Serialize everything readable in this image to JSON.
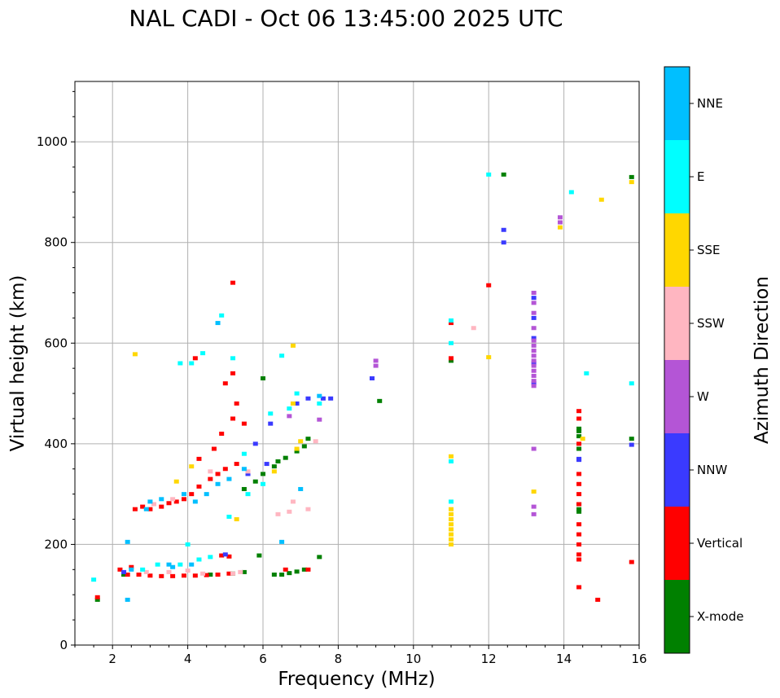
{
  "chart_data": {
    "type": "scatter",
    "title": "NAL CADI - Oct 06 13:45:00 2025 UTC",
    "xlabel": "Frequency (MHz)",
    "ylabel": "Virtual height (km)",
    "xlim": [
      1,
      16
    ],
    "ylim": [
      0,
      1120
    ],
    "xticks": [
      2,
      4,
      6,
      8,
      10,
      12,
      14,
      16
    ],
    "yticks": [
      0,
      200,
      400,
      600,
      800,
      1000
    ],
    "grid": true,
    "colorbar": {
      "title": "Azimuth Direction",
      "categories": [
        "X-mode",
        "Vertical",
        "NNW",
        "W",
        "SSW",
        "SSE",
        "E",
        "NNE"
      ],
      "colors": [
        "#008000",
        "#ff0000",
        "#3a3aff",
        "#b455d6",
        "#ffb6c1",
        "#ffd700",
        "#00ffff",
        "#00bfff"
      ]
    },
    "series": [
      {
        "name": "X-mode",
        "points": [
          [
            1.6,
            90
          ],
          [
            2.3,
            140
          ],
          [
            4.6,
            140
          ],
          [
            5.2,
            142
          ],
          [
            5.5,
            145
          ],
          [
            5.9,
            178
          ],
          [
            6.3,
            140
          ],
          [
            6.5,
            140
          ],
          [
            6.7,
            143
          ],
          [
            6.9,
            146
          ],
          [
            7.1,
            150
          ],
          [
            7.5,
            175
          ],
          [
            5.5,
            310
          ],
          [
            5.8,
            325
          ],
          [
            6.0,
            340
          ],
          [
            6.3,
            355
          ],
          [
            6.4,
            365
          ],
          [
            6.6,
            372
          ],
          [
            6.9,
            385
          ],
          [
            7.1,
            395
          ],
          [
            7.2,
            410
          ],
          [
            6.0,
            530
          ],
          [
            9.1,
            485
          ],
          [
            11.0,
            565
          ],
          [
            12.4,
            935
          ],
          [
            14.4,
            265
          ],
          [
            14.4,
            270
          ],
          [
            14.4,
            280
          ],
          [
            14.4,
            390
          ],
          [
            14.4,
            415
          ],
          [
            14.4,
            425
          ],
          [
            14.4,
            430
          ],
          [
            15.8,
            410
          ],
          [
            15.8,
            930
          ]
        ]
      },
      {
        "name": "Vertical",
        "points": [
          [
            1.6,
            95
          ],
          [
            2.2,
            150
          ],
          [
            2.4,
            140
          ],
          [
            2.5,
            155
          ],
          [
            2.7,
            140
          ],
          [
            3.0,
            138
          ],
          [
            3.3,
            137
          ],
          [
            3.6,
            137
          ],
          [
            3.9,
            138
          ],
          [
            4.2,
            138
          ],
          [
            4.5,
            139
          ],
          [
            4.8,
            140
          ],
          [
            5.1,
            142
          ],
          [
            4.9,
            178
          ],
          [
            5.1,
            176
          ],
          [
            2.6,
            270
          ],
          [
            2.8,
            275
          ],
          [
            3.0,
            270
          ],
          [
            3.3,
            275
          ],
          [
            3.5,
            282
          ],
          [
            3.7,
            285
          ],
          [
            3.9,
            290
          ],
          [
            4.1,
            300
          ],
          [
            4.3,
            315
          ],
          [
            4.6,
            330
          ],
          [
            4.8,
            340
          ],
          [
            5.0,
            350
          ],
          [
            5.3,
            360
          ],
          [
            4.3,
            370
          ],
          [
            4.7,
            390
          ],
          [
            4.9,
            420
          ],
          [
            5.2,
            450
          ],
          [
            5.3,
            480
          ],
          [
            5.5,
            440
          ],
          [
            5.0,
            520
          ],
          [
            5.2,
            540
          ],
          [
            4.2,
            570
          ],
          [
            5.2,
            720
          ],
          [
            6.6,
            150
          ],
          [
            7.2,
            150
          ],
          [
            11.0,
            570
          ],
          [
            11.0,
            640
          ],
          [
            12.0,
            715
          ],
          [
            14.4,
            115
          ],
          [
            14.4,
            170
          ],
          [
            14.4,
            180
          ],
          [
            14.4,
            200
          ],
          [
            14.4,
            220
          ],
          [
            14.4,
            240
          ],
          [
            14.4,
            280
          ],
          [
            14.4,
            300
          ],
          [
            14.4,
            320
          ],
          [
            14.4,
            340
          ],
          [
            14.4,
            400
          ],
          [
            14.4,
            450
          ],
          [
            14.4,
            465
          ],
          [
            14.9,
            90
          ],
          [
            15.8,
            165
          ]
        ]
      },
      {
        "name": "NNW",
        "points": [
          [
            2.3,
            145
          ],
          [
            5.0,
            180
          ],
          [
            5.6,
            340
          ],
          [
            5.8,
            400
          ],
          [
            6.1,
            360
          ],
          [
            6.2,
            440
          ],
          [
            6.9,
            480
          ],
          [
            7.2,
            490
          ],
          [
            7.6,
            490
          ],
          [
            7.8,
            490
          ],
          [
            8.9,
            530
          ],
          [
            12.4,
            800
          ],
          [
            12.4,
            825
          ],
          [
            13.2,
            520
          ],
          [
            13.2,
            560
          ],
          [
            13.2,
            610
          ],
          [
            13.2,
            650
          ],
          [
            13.2,
            690
          ],
          [
            14.4,
            368
          ],
          [
            14.4,
            370
          ],
          [
            15.8,
            398
          ]
        ]
      },
      {
        "name": "W",
        "points": [
          [
            6.7,
            455
          ],
          [
            7.5,
            448
          ],
          [
            9.0,
            555
          ],
          [
            9.0,
            565
          ],
          [
            13.2,
            260
          ],
          [
            13.2,
            275
          ],
          [
            13.2,
            390
          ],
          [
            13.2,
            515
          ],
          [
            13.2,
            525
          ],
          [
            13.2,
            535
          ],
          [
            13.2,
            545
          ],
          [
            13.2,
            555
          ],
          [
            13.2,
            565
          ],
          [
            13.2,
            575
          ],
          [
            13.2,
            585
          ],
          [
            13.2,
            595
          ],
          [
            13.2,
            605
          ],
          [
            13.2,
            630
          ],
          [
            13.2,
            660
          ],
          [
            13.2,
            680
          ],
          [
            13.2,
            700
          ],
          [
            13.9,
            840
          ],
          [
            13.9,
            850
          ]
        ]
      },
      {
        "name": "SSW",
        "points": [
          [
            2.9,
            145
          ],
          [
            3.5,
            145
          ],
          [
            4.0,
            148
          ],
          [
            4.4,
            142
          ],
          [
            5.2,
            142
          ],
          [
            5.4,
            145
          ],
          [
            3.1,
            280
          ],
          [
            3.6,
            290
          ],
          [
            4.6,
            345
          ],
          [
            5.6,
            345
          ],
          [
            6.4,
            260
          ],
          [
            6.7,
            265
          ],
          [
            6.8,
            285
          ],
          [
            7.2,
            270
          ],
          [
            7.4,
            405
          ],
          [
            11.6,
            630
          ]
        ]
      },
      {
        "name": "SSE",
        "points": [
          [
            3.7,
            325
          ],
          [
            4.1,
            355
          ],
          [
            5.3,
            250
          ],
          [
            6.3,
            345
          ],
          [
            6.9,
            390
          ],
          [
            7.0,
            405
          ],
          [
            6.8,
            480
          ],
          [
            6.8,
            595
          ],
          [
            2.6,
            578
          ],
          [
            11.0,
            200
          ],
          [
            11.0,
            210
          ],
          [
            11.0,
            220
          ],
          [
            11.0,
            230
          ],
          [
            11.0,
            240
          ],
          [
            11.0,
            250
          ],
          [
            11.0,
            260
          ],
          [
            11.0,
            270
          ],
          [
            11.0,
            375
          ],
          [
            12.0,
            572
          ],
          [
            13.2,
            305
          ],
          [
            13.9,
            830
          ],
          [
            14.5,
            410
          ],
          [
            15.0,
            885
          ],
          [
            15.8,
            920
          ]
        ]
      },
      {
        "name": "E",
        "points": [
          [
            1.5,
            130
          ],
          [
            2.8,
            150
          ],
          [
            3.2,
            160
          ],
          [
            3.8,
            160
          ],
          [
            4.0,
            200
          ],
          [
            4.3,
            170
          ],
          [
            4.6,
            175
          ],
          [
            5.1,
            255
          ],
          [
            5.5,
            380
          ],
          [
            5.6,
            300
          ],
          [
            6.0,
            320
          ],
          [
            6.2,
            460
          ],
          [
            6.7,
            470
          ],
          [
            6.9,
            500
          ],
          [
            7.5,
            480
          ],
          [
            3.8,
            560
          ],
          [
            4.1,
            560
          ],
          [
            4.4,
            580
          ],
          [
            4.9,
            655
          ],
          [
            5.2,
            570
          ],
          [
            6.5,
            575
          ],
          [
            11.0,
            285
          ],
          [
            11.0,
            365
          ],
          [
            11.0,
            600
          ],
          [
            11.0,
            645
          ],
          [
            12.0,
            935
          ],
          [
            14.2,
            900
          ],
          [
            14.6,
            540
          ],
          [
            15.8,
            520
          ]
        ]
      },
      {
        "name": "NNE",
        "points": [
          [
            2.4,
            90
          ],
          [
            2.4,
            205
          ],
          [
            2.5,
            150
          ],
          [
            2.9,
            270
          ],
          [
            3.0,
            285
          ],
          [
            3.3,
            290
          ],
          [
            3.5,
            160
          ],
          [
            3.6,
            155
          ],
          [
            3.9,
            300
          ],
          [
            4.1,
            160
          ],
          [
            4.2,
            285
          ],
          [
            4.5,
            300
          ],
          [
            4.8,
            320
          ],
          [
            5.1,
            330
          ],
          [
            5.5,
            350
          ],
          [
            4.8,
            640
          ],
          [
            6.5,
            205
          ],
          [
            7.0,
            310
          ],
          [
            7.5,
            495
          ]
        ]
      }
    ]
  }
}
